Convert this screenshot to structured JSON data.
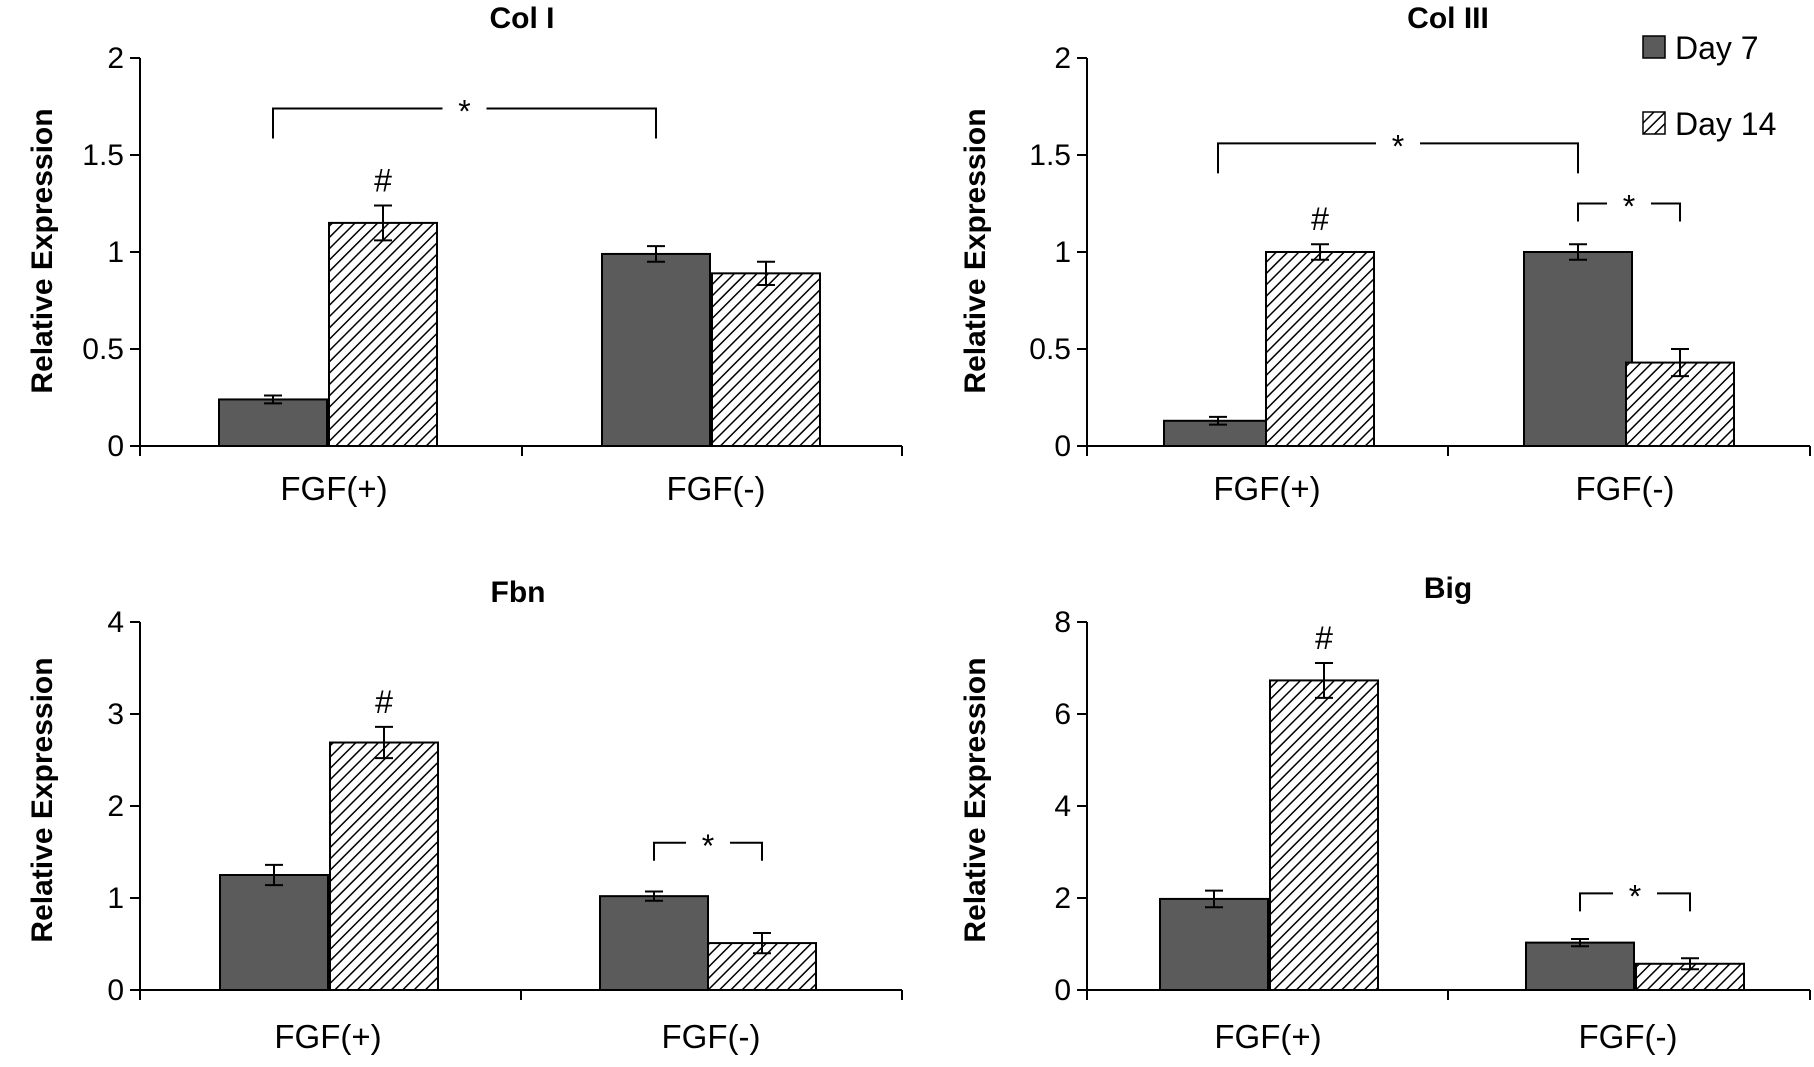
{
  "legend": [
    "Day 7",
    "Day 14"
  ],
  "colors": {
    "day7": "#5b5b5b",
    "axis": "#000000",
    "hatch": "#000000"
  },
  "chart_data": [
    {
      "type": "bar",
      "title": "Col I",
      "ylabel": "Relative Expression",
      "categories": [
        "FGF(+)",
        "FGF(-)"
      ],
      "ylim": [
        0,
        2
      ],
      "yticks": [
        0,
        0.5,
        1,
        1.5,
        2
      ],
      "ytick_labels": [
        "0",
        "0.5",
        "1",
        "1.5",
        "2"
      ],
      "series": [
        {
          "name": "Day 7",
          "values": [
            0.24,
            0.99
          ],
          "errors": [
            0.02,
            0.04
          ]
        },
        {
          "name": "Day 14",
          "values": [
            1.15,
            0.89
          ],
          "errors": [
            0.09,
            0.06
          ]
        }
      ],
      "hash_marks": [
        {
          "category": 0,
          "series": 1,
          "text": "#"
        }
      ],
      "brackets": [
        {
          "from": [
            0,
            0
          ],
          "to": [
            1,
            0
          ],
          "y": 1.74,
          "text": "*"
        }
      ]
    },
    {
      "type": "bar",
      "title": "Col III",
      "ylabel": "Relative Expression",
      "categories": [
        "FGF(+)",
        "FGF(-)"
      ],
      "ylim": [
        0,
        2
      ],
      "yticks": [
        0,
        0.5,
        1,
        1.5,
        2
      ],
      "ytick_labels": [
        "0",
        "0.5",
        "1",
        "1.5",
        "2"
      ],
      "series": [
        {
          "name": "Day 7",
          "values": [
            0.13,
            1.0
          ],
          "errors": [
            0.02,
            0.04
          ]
        },
        {
          "name": "Day 14",
          "values": [
            1.0,
            0.43
          ],
          "errors": [
            0.04,
            0.07
          ]
        }
      ],
      "hash_marks": [
        {
          "category": 0,
          "series": 1,
          "text": "#"
        }
      ],
      "brackets": [
        {
          "from": [
            0,
            0
          ],
          "to": [
            1,
            0
          ],
          "y": 1.56,
          "text": "*"
        },
        {
          "from": [
            1,
            0
          ],
          "to": [
            1,
            1
          ],
          "y": 1.25,
          "text": "*"
        }
      ]
    },
    {
      "type": "bar",
      "title": "Fbn",
      "ylabel": "Relative Expression",
      "categories": [
        "FGF(+)",
        "FGF(-)"
      ],
      "ylim": [
        0,
        4
      ],
      "yticks": [
        0,
        1,
        2,
        3,
        4
      ],
      "ytick_labels": [
        "0",
        "1",
        "2",
        "3",
        "4"
      ],
      "series": [
        {
          "name": "Day 7",
          "values": [
            1.25,
            1.02
          ],
          "errors": [
            0.11,
            0.05
          ]
        },
        {
          "name": "Day 14",
          "values": [
            2.69,
            0.51
          ],
          "errors": [
            0.17,
            0.11
          ]
        }
      ],
      "hash_marks": [
        {
          "category": 0,
          "series": 1,
          "text": "#"
        }
      ],
      "brackets": [
        {
          "from": [
            1,
            0
          ],
          "to": [
            1,
            1
          ],
          "y": 1.6,
          "text": "*"
        }
      ]
    },
    {
      "type": "bar",
      "title": "Big",
      "ylabel": "Relative Expression",
      "categories": [
        "FGF(+)",
        "FGF(-)"
      ],
      "ylim": [
        0,
        8
      ],
      "yticks": [
        0,
        2,
        4,
        6,
        8
      ],
      "ytick_labels": [
        "0",
        "2",
        "4",
        "6",
        "8"
      ],
      "series": [
        {
          "name": "Day 7",
          "values": [
            1.98,
            1.03
          ],
          "errors": [
            0.18,
            0.08
          ]
        },
        {
          "name": "Day 14",
          "values": [
            6.73,
            0.57
          ],
          "errors": [
            0.38,
            0.12
          ]
        }
      ],
      "hash_marks": [
        {
          "category": 0,
          "series": 1,
          "text": "#"
        }
      ],
      "brackets": [
        {
          "from": [
            1,
            0
          ],
          "to": [
            1,
            1
          ],
          "y": 2.1,
          "text": "*"
        }
      ]
    }
  ]
}
